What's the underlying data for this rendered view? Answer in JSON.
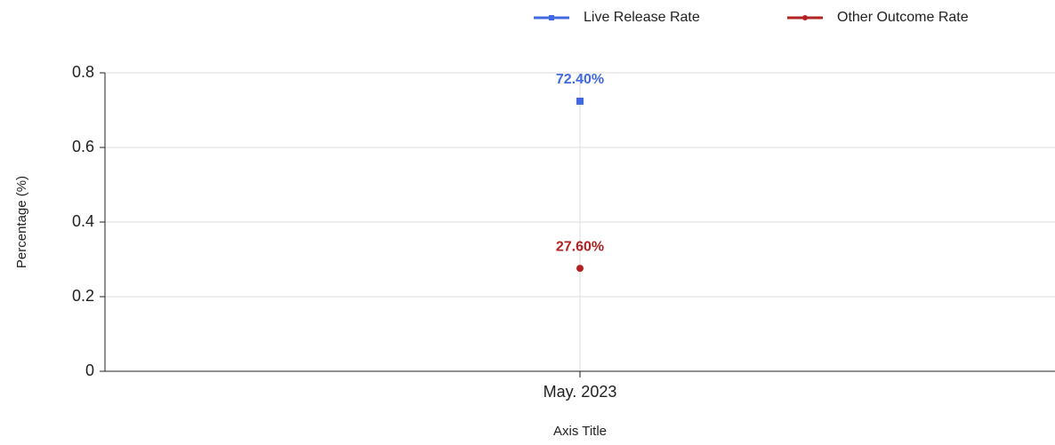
{
  "chart_data": {
    "type": "line",
    "categories": [
      "May. 2023"
    ],
    "series": [
      {
        "name": "Live Release Rate",
        "color": "#4169e1",
        "marker": "square",
        "values": [
          0.724
        ],
        "value_labels": [
          "72.40%"
        ]
      },
      {
        "name": "Other Outcome Rate",
        "color": "#b22222",
        "marker": "circle",
        "values": [
          0.276
        ],
        "value_labels": [
          "27.60%"
        ]
      }
    ],
    "ylabel": "Percentage (%)",
    "xlabel": "Axis Title",
    "ylim": [
      0,
      0.8
    ],
    "yticks": [
      0,
      0.2,
      0.4,
      0.6,
      0.8
    ],
    "grid": true,
    "legend": "top-right"
  }
}
